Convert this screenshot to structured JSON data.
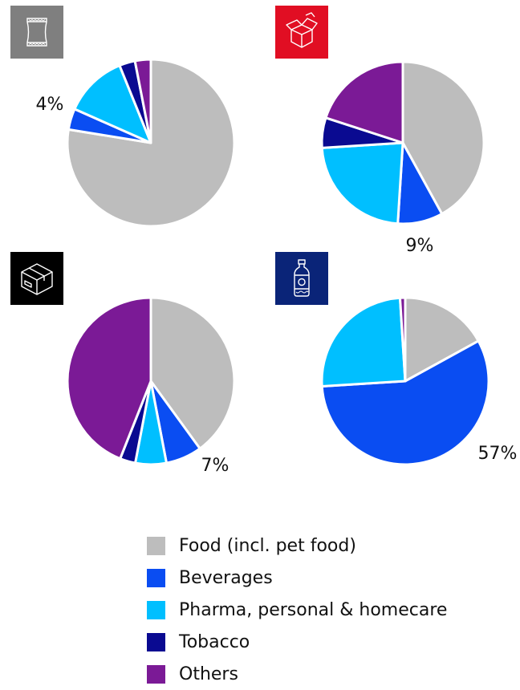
{
  "colors": {
    "food": "#BDBDBD",
    "beverages": "#0A4DF2",
    "pharma": "#00BFFF",
    "tobacco": "#0A0A91",
    "others": "#7B1A96",
    "icon_flexible_bg": "#7F7F7F",
    "icon_folding_bg": "#E10E23",
    "icon_corrugated_bg": "#000000",
    "icon_bottle_bg": "#0A2478"
  },
  "icons": {
    "flexible": "flexible-pouch-icon",
    "folding": "open-carton-icon",
    "corrugated": "corrugated-box-icon",
    "bottle": "plastic-bottle-icon"
  },
  "chart_data": [
    {
      "type": "pie",
      "categories": [
        "Food (incl. pet food)",
        "Beverages",
        "Pharma, personal & homecare",
        "Tobacco",
        "Others"
      ],
      "values": [
        76,
        4,
        12,
        3,
        3
      ],
      "annotation": "4%"
    },
    {
      "type": "pie",
      "categories": [
        "Food (incl. pet food)",
        "Beverages",
        "Pharma, personal & homecare",
        "Tobacco",
        "Others"
      ],
      "values": [
        42,
        9,
        23,
        6,
        20
      ],
      "annotation": "9%"
    },
    {
      "type": "pie",
      "categories": [
        "Food (incl. pet food)",
        "Beverages",
        "Pharma, personal & homecare",
        "Tobacco",
        "Others"
      ],
      "values": [
        40,
        7,
        6,
        3,
        44
      ],
      "annotation": "7%"
    },
    {
      "type": "pie",
      "categories": [
        "Food (incl. pet food)",
        "Beverages",
        "Pharma, personal & homecare",
        "Tobacco",
        "Others"
      ],
      "values": [
        17,
        57,
        25,
        0,
        1
      ],
      "annotation": "57%"
    }
  ],
  "legend": {
    "items": [
      {
        "label": "Food (incl. pet food)",
        "key": "food"
      },
      {
        "label": "Beverages",
        "key": "beverages"
      },
      {
        "label": "Pharma, personal & homecare",
        "key": "pharma"
      },
      {
        "label": "Tobacco",
        "key": "tobacco"
      },
      {
        "label": "Others",
        "key": "others"
      }
    ]
  }
}
